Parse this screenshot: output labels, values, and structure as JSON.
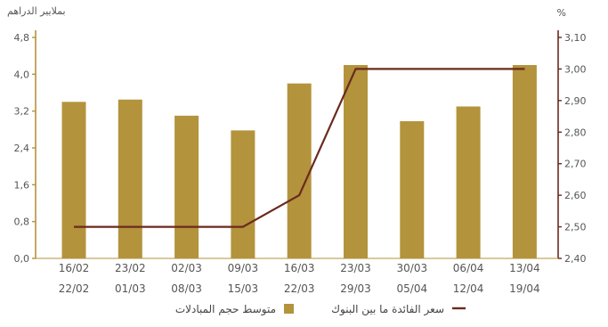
{
  "chart_data": {
    "type": "bar",
    "categories": [
      [
        "16/02",
        "22/02"
      ],
      [
        "23/02",
        "01/03"
      ],
      [
        "02/03",
        "08/03"
      ],
      [
        "09/03",
        "15/03"
      ],
      [
        "16/03",
        "22/03"
      ],
      [
        "23/03",
        "29/03"
      ],
      [
        "30/03",
        "05/04"
      ],
      [
        "06/04",
        "12/04"
      ],
      [
        "13/04",
        "19/04"
      ]
    ],
    "series": [
      {
        "name": "متوسط حجم المبادلات",
        "type": "bar",
        "axis": "left",
        "color": "#b3933c",
        "values": [
          3.4,
          3.45,
          3.1,
          2.78,
          3.8,
          4.2,
          2.98,
          3.3,
          4.2
        ]
      },
      {
        "name": "سعر الفائدة ما بين البنوك",
        "type": "line",
        "axis": "right",
        "color": "#6b2a1e",
        "values": [
          2.5,
          2.5,
          2.5,
          2.5,
          2.6,
          3.0,
          3.0,
          3.0,
          3.0
        ]
      }
    ],
    "left_axis": {
      "label": "بملايير الدراهم",
      "ylim": [
        0,
        4.8
      ],
      "ticks": [
        "0,0",
        "0,8",
        "1,6",
        "2,4",
        "3,2",
        "4,0",
        "4,8"
      ],
      "color": "#b3933c"
    },
    "right_axis": {
      "label": "%",
      "ylim": [
        2.4,
        3.1
      ],
      "ticks": [
        "2,40",
        "2,50",
        "2,60",
        "2,70",
        "2,80",
        "2,90",
        "3,00",
        "3,10"
      ],
      "color": "#6b2a1e"
    },
    "grid": false,
    "legend_position": "bottom"
  }
}
